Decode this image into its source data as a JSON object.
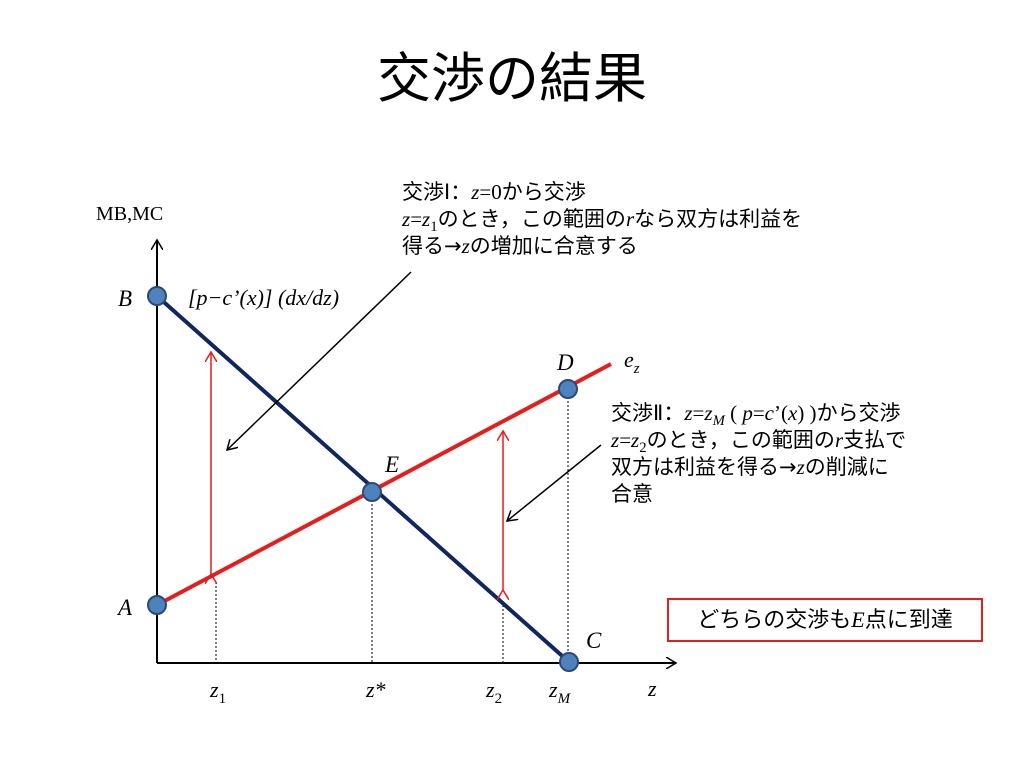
{
  "title": "交渉の結果",
  "axes": {
    "y_label": "MB,MC",
    "x_label": "z"
  },
  "points": {
    "B": "B",
    "A": "A",
    "D": "D",
    "E": "E",
    "C": "C"
  },
  "curve_labels": {
    "mb_formula": "[p−c’(x)] (dx/dz)",
    "ez_base": "e",
    "ez_sub": "z"
  },
  "x_ticks": {
    "z1": {
      "base": "z",
      "sub": "1"
    },
    "zstar": "z*",
    "z2": {
      "base": "z",
      "sub": "2"
    },
    "zM": {
      "base": "z",
      "sub": "M"
    }
  },
  "annotation1": {
    "line1": {
      "a": "交渉Ⅰ：",
      "b": "z",
      "c": "=0",
      "d": "から交渉"
    },
    "line2": {
      "a": "z",
      "b": "=",
      "c": "z",
      "d": "1",
      "e": "のとき，この範囲の",
      "f": "r",
      "g": "なら双方は利益を"
    },
    "line3": {
      "a": "得る→",
      "b": "z",
      "c": "の増加に合意する"
    }
  },
  "annotation2": {
    "line1": {
      "a": "交渉Ⅱ：",
      "b": "z",
      "c": "=",
      "d": "z",
      "e": "M",
      "f": " ( ",
      "g": "p",
      "h": "=",
      "i": "c",
      "j": "’(",
      "k": "x",
      "l": ") )",
      "m": "から交渉"
    },
    "line2": {
      "a": "z",
      "b": "=",
      "c": "z",
      "d": "2",
      "e": "のとき，この範囲の",
      "f": "r",
      "g": "支払で"
    },
    "line3": {
      "a": "双方は利益を得る→",
      "b": "z",
      "c": "の削減に"
    },
    "line4": "合意"
  },
  "conclusion": {
    "a": "どちらの交渉も",
    "b": "E",
    "c": "点に到達"
  },
  "colors": {
    "mb_line": "#10265f",
    "ez_line": "#e41d1d",
    "point_fill": "#4f81bd",
    "point_stroke": "#2a4a7a",
    "arrow_red": "#e41d1d",
    "box_border": "#e41d1d"
  }
}
